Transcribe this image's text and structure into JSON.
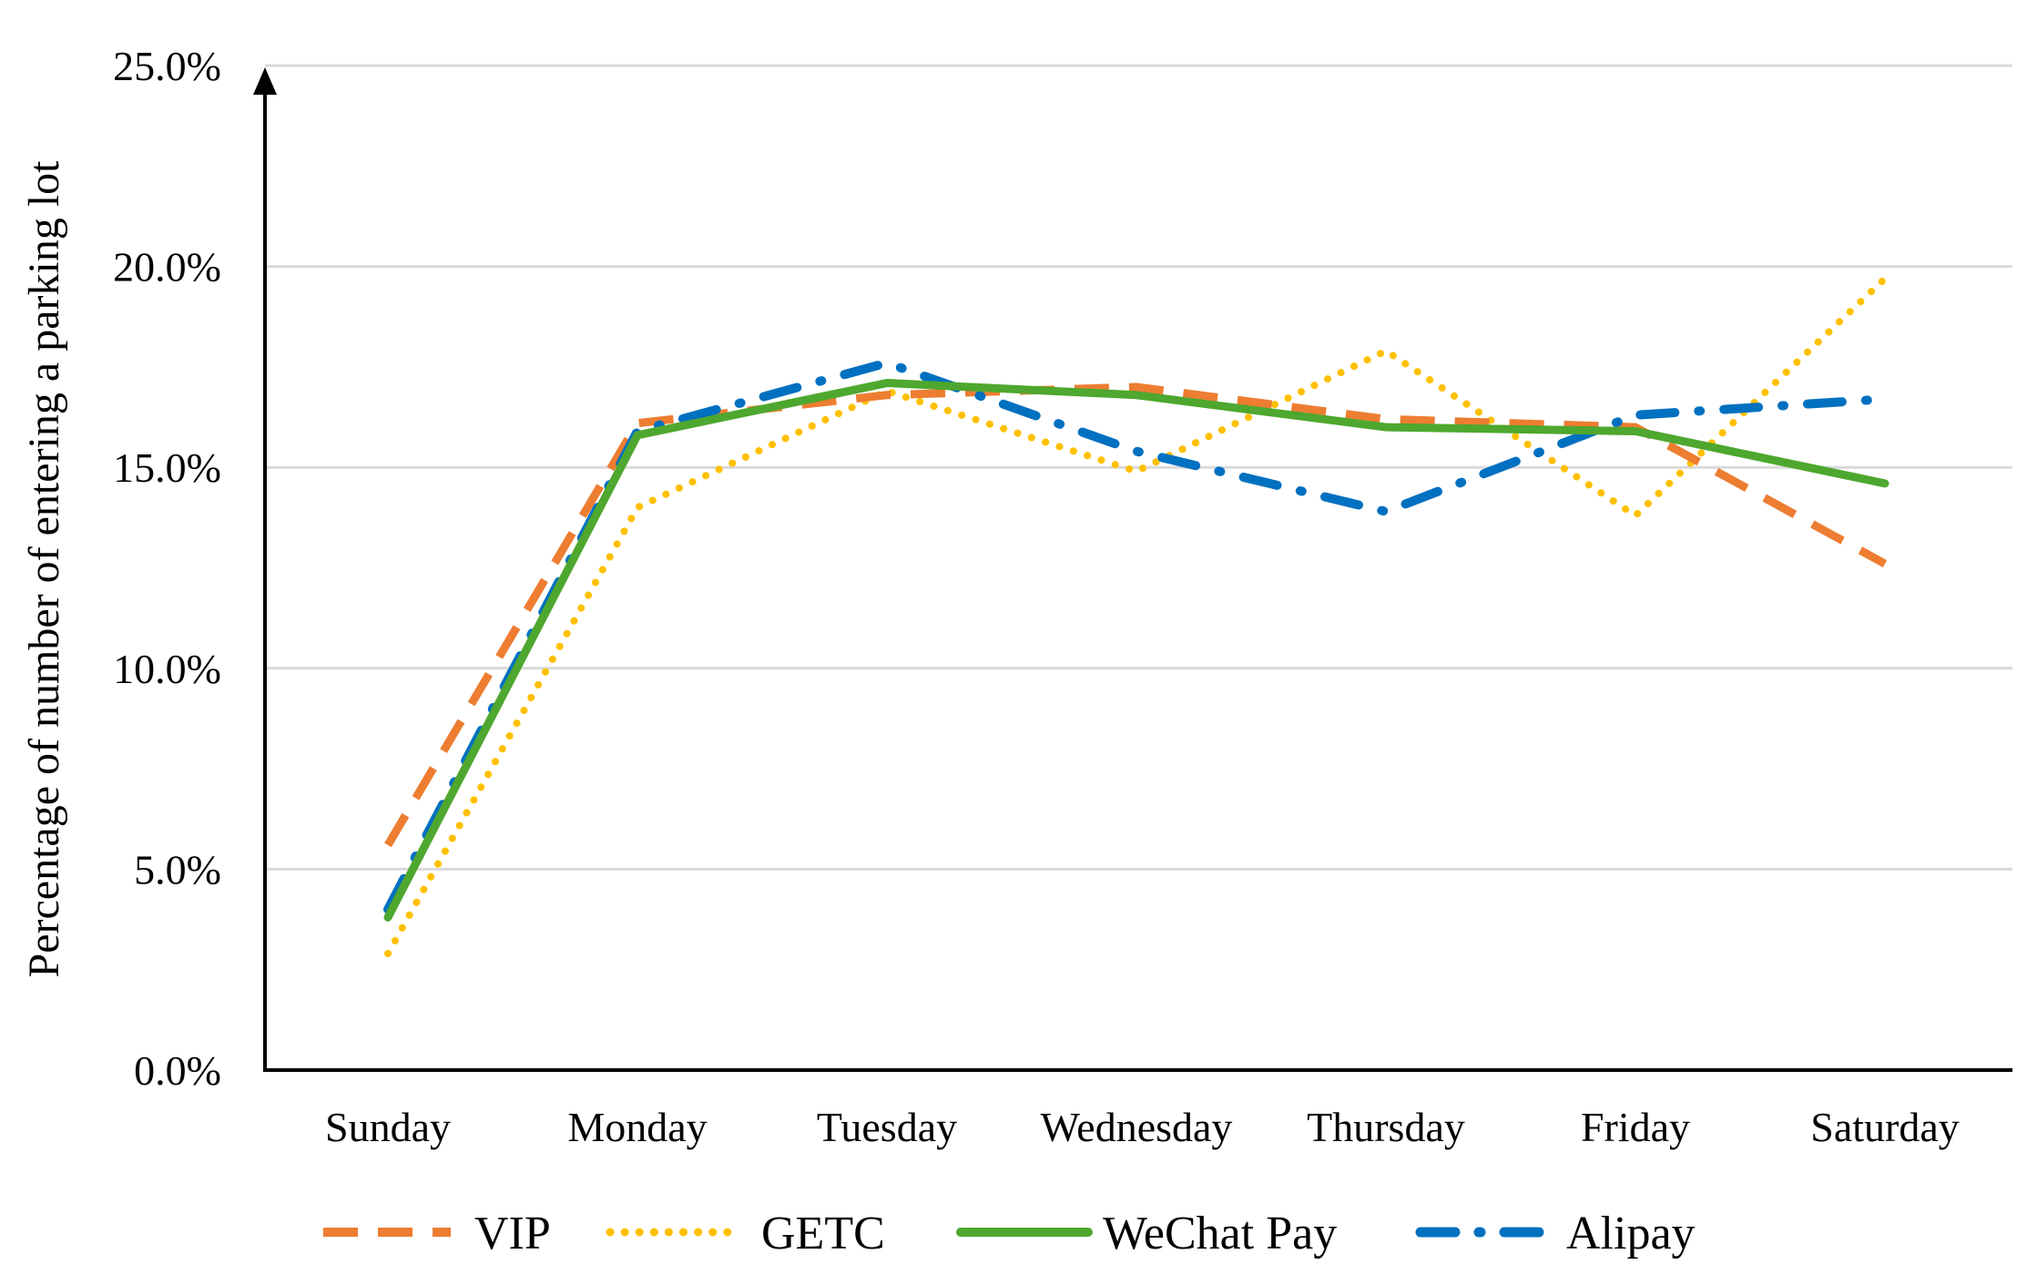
{
  "chart_data": {
    "type": "line",
    "title": "",
    "xlabel": "",
    "ylabel": "Percentage of number of entering a parking lot",
    "ylim": [
      0,
      25
    ],
    "ytick_values": [
      0,
      5,
      10,
      15,
      20,
      25
    ],
    "ytick_labels": [
      "0.0%",
      "5.0%",
      "10.0%",
      "15.0%",
      "20.0%",
      "25.0%"
    ],
    "grid": true,
    "legend_position": "bottom",
    "categories": [
      "Sunday",
      "Monday",
      "Tuesday",
      "Wednesday",
      "Thursday",
      "Friday",
      "Saturday"
    ],
    "series": [
      {
        "name": "VIP",
        "color": "#ED7D31",
        "style": "dash",
        "values": [
          5.6,
          16.1,
          16.8,
          17.0,
          16.2,
          16.0,
          12.6
        ]
      },
      {
        "name": "GETC",
        "color": "#FFC000",
        "style": "dot",
        "values": [
          2.9,
          14.0,
          16.9,
          14.9,
          17.9,
          13.8,
          19.7
        ]
      },
      {
        "name": "WeChat Pay",
        "color": "#4EA72E",
        "style": "solid",
        "values": [
          3.8,
          15.8,
          17.1,
          16.8,
          16.0,
          15.9,
          14.6
        ]
      },
      {
        "name": "Alipay",
        "color": "#0070C0",
        "style": "dashdot",
        "values": [
          4.0,
          15.9,
          17.6,
          15.4,
          13.9,
          16.3,
          16.7
        ]
      }
    ]
  }
}
